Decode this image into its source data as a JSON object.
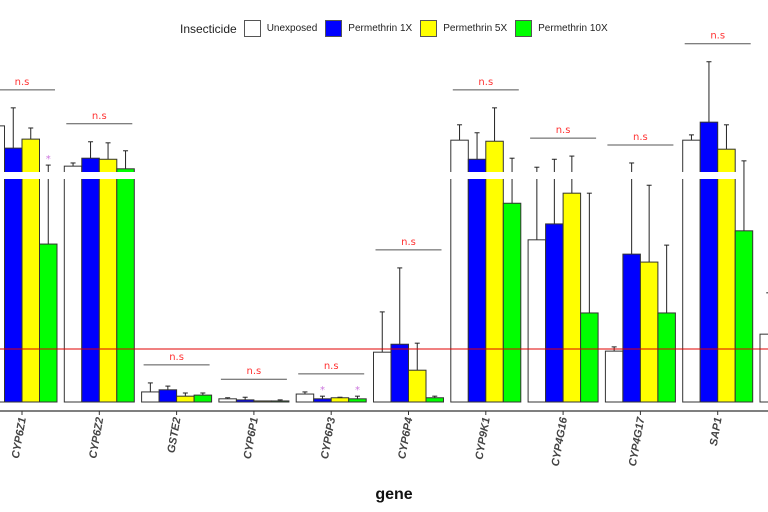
{
  "chart_data": {
    "type": "bar",
    "title": "",
    "xlabel": "gene",
    "ylabel": "",
    "value_units": "relative expression (reference line = 1)",
    "axis_break": "y-axis break between ~4.2 and ~4.35",
    "reference_line": {
      "value": 1.0,
      "color": "#e00000"
    },
    "legend": {
      "title": "Insecticide",
      "position": "top"
    },
    "categories": [
      "CYP6Z1",
      "CYP6Z2",
      "GSTE2",
      "CYP6P1",
      "CYP6P3",
      "CYP6P4",
      "CYP9K1",
      "CYP4G16",
      "CYP4G17",
      "SAP1",
      ""
    ],
    "series": [
      {
        "name": "Unexposed",
        "color": "#ffffff",
        "values": [
          5.21,
          4.45,
          0.19,
          0.06,
          0.15,
          0.94,
          4.94,
          3.06,
          0.96,
          4.94,
          1.28
        ],
        "error_upper": [
          5.21,
          4.51,
          0.36,
          0.08,
          0.19,
          1.7,
          5.23,
          4.43,
          1.04,
          5.04,
          2.06
        ]
      },
      {
        "name": "Permethrin 1X",
        "color": "#0000ff",
        "values": [
          4.79,
          4.6,
          0.23,
          0.04,
          0.06,
          1.09,
          4.58,
          3.36,
          2.79,
          5.28,
          null
        ],
        "error_upper": [
          5.55,
          4.91,
          0.3,
          0.09,
          0.11,
          2.53,
          5.08,
          4.58,
          4.51,
          6.42,
          null
        ]
      },
      {
        "name": "Permethrin 5X",
        "color": "#ffff00",
        "values": [
          4.96,
          4.58,
          0.11,
          0.02,
          0.08,
          0.6,
          4.92,
          3.94,
          2.64,
          4.77,
          null
        ],
        "error_upper": [
          5.17,
          4.89,
          0.17,
          0.02,
          0.09,
          1.11,
          5.55,
          4.64,
          4.09,
          5.23,
          null
        ]
      },
      {
        "name": "Permethrin 10X",
        "color": "#00ff00",
        "values": [
          2.98,
          4.4,
          0.13,
          0.02,
          0.06,
          0.08,
          3.75,
          1.68,
          1.68,
          3.23,
          null
        ],
        "error_upper": [
          4.47,
          4.74,
          0.17,
          0.04,
          0.11,
          0.11,
          4.6,
          3.94,
          2.96,
          4.55,
          null
        ]
      }
    ],
    "annotations": {
      "group_labels": [
        "n.s",
        "n.s",
        "n.s",
        "n.s",
        "n.s",
        "n.s",
        "n.s",
        "n.s",
        "n.s",
        "n.s",
        null
      ],
      "group_label_color": "#ff3333",
      "stars": [
        {
          "category": "CYP6Z1",
          "series": "Permethrin 10X",
          "text": "*"
        },
        {
          "category": "CYP6P3",
          "series": "Permethrin 1X",
          "text": "*"
        },
        {
          "category": "CYP6P3",
          "series": "Permethrin 10X",
          "text": "*"
        }
      ],
      "star_color": "#cc77dd"
    }
  }
}
